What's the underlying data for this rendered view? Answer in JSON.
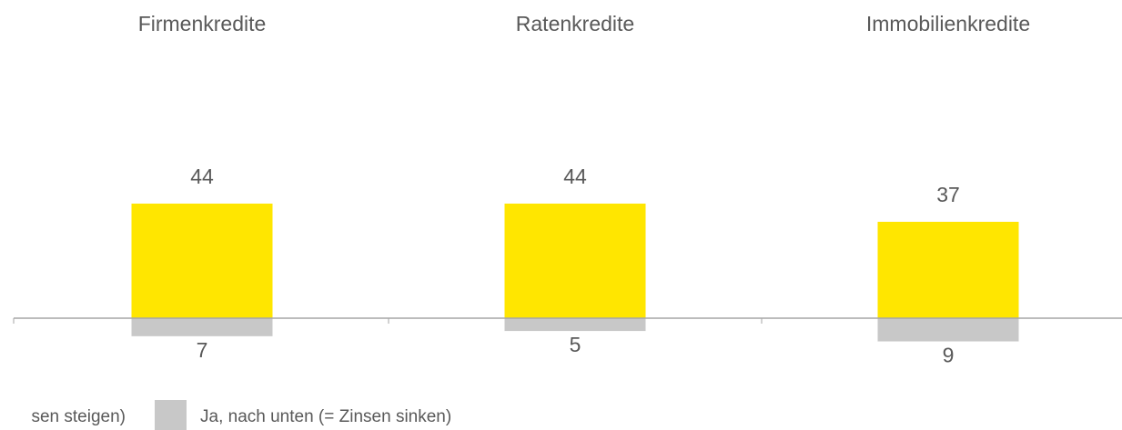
{
  "chart_data": {
    "type": "bar",
    "categories": [
      "Firmenkredite",
      "Ratenkredite",
      "Immobilienkredite"
    ],
    "series": [
      {
        "name": "sen steigen)",
        "color": "#ffe600",
        "values": [
          44,
          44,
          37
        ]
      },
      {
        "name": "Ja, nach unten (= Zinsen sinken)",
        "color": "#c8c8c8",
        "values": [
          -7,
          -5,
          -9
        ],
        "value_labels": [
          "7",
          "5",
          "9"
        ]
      }
    ],
    "ylim": [
      -20,
      80
    ]
  }
}
